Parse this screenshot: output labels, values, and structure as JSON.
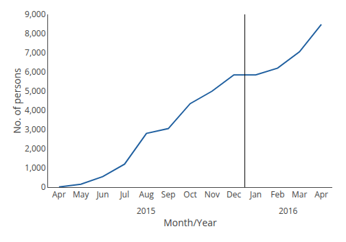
{
  "chart_data": {
    "type": "line",
    "categories": [
      "Apr",
      "May",
      "Jun",
      "Jul",
      "Aug",
      "Sep",
      "Oct",
      "Nov",
      "Dec",
      "Jan",
      "Feb",
      "Mar",
      "Apr"
    ],
    "values": [
      10,
      150,
      550,
      1200,
      2800,
      3050,
      4350,
      5000,
      5850,
      5850,
      6200,
      7050,
      8480
    ],
    "color": "#2060a0",
    "xlabel": "Month/Year",
    "ylabel": "No. of persons",
    "annotations": [
      "2015",
      "2016"
    ],
    "ylim": [
      0,
      9000
    ],
    "yticks": [
      0,
      {
        "value": 1000,
        "label": "1,000"
      },
      {
        "value": 2000,
        "label": "2,000"
      },
      {
        "value": 3000,
        "label": "3,000"
      },
      {
        "value": 4000,
        "label": "4,000"
      },
      {
        "value": 5000,
        "label": "5,000"
      },
      {
        "value": 6000,
        "label": "6,000"
      },
      {
        "value": 7000,
        "label": "7,000"
      },
      {
        "value": 8000,
        "label": "8,000"
      },
      {
        "value": 9000,
        "label": "9,000"
      }
    ],
    "grid": false
  }
}
